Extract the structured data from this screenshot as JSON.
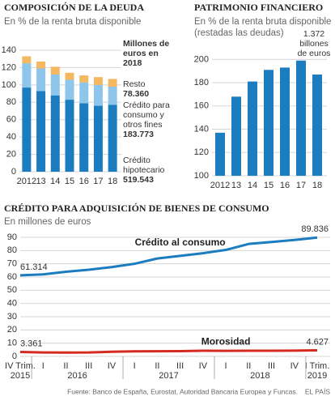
{
  "chart_data": [
    {
      "type": "bar",
      "stacked": true,
      "title": "COMPOSICIÓN DE LA DEUDA",
      "subtitle": "En % de la renta bruta disponible",
      "categories": [
        "2012",
        "13",
        "14",
        "15",
        "16",
        "17",
        "18"
      ],
      "ylim": [
        0,
        140
      ],
      "yticks": [
        0,
        20,
        40,
        60,
        80,
        100,
        120,
        140
      ],
      "grid": true,
      "annotation_title": "Millones de euros en 2018",
      "series": [
        {
          "name": "Crédito hipotecario",
          "color": "#1c7cc0",
          "values": [
            97,
            93,
            88,
            83,
            79,
            76,
            77
          ],
          "annotation": "519.543"
        },
        {
          "name": "Crédito para consumo y otros fines",
          "color": "#8ec5ea",
          "values": [
            28,
            26,
            24,
            23,
            24,
            24,
            21
          ],
          "annotation": "183.773"
        },
        {
          "name": "Resto",
          "color": "#f4b860",
          "values": [
            8,
            8,
            9,
            8,
            8,
            9,
            9
          ],
          "annotation": "78.360"
        }
      ]
    },
    {
      "type": "bar",
      "title": "PATRIMONIO FINANCIERO",
      "subtitle": "En % de la renta bruta disponible (restadas las deudas)",
      "categories": [
        "2012",
        "13",
        "14",
        "15",
        "16",
        "17",
        "18"
      ],
      "values": [
        137,
        168,
        181,
        191,
        193,
        199,
        187
      ],
      "color": "#1c7cc0",
      "ylim": [
        100,
        210
      ],
      "yticks": [
        100,
        120,
        140,
        160,
        180,
        200
      ],
      "grid": true,
      "annotation": "1.372 billones de euros"
    },
    {
      "type": "line",
      "title": "CRÉDITO PARA ADQUISICIÓN DE BIENES DE CONSUMO",
      "subtitle": "En millones de euros",
      "categories": [
        "IV Trim.",
        "I",
        "II",
        "III",
        "IV",
        "I",
        "II",
        "III",
        "IV",
        "I",
        "II",
        "III",
        "IV",
        "I Trim."
      ],
      "year_labels": [
        "2015",
        "2016",
        "2017",
        "2018",
        "2019"
      ],
      "ylim": [
        0,
        90
      ],
      "yticks": [
        0,
        10,
        20,
        30,
        40,
        50,
        60,
        70,
        80,
        90
      ],
      "grid": true,
      "series": [
        {
          "name": "Crédito al consumo",
          "color": "#1c7cc0",
          "values": [
            61.314,
            62,
            64,
            65.5,
            67.5,
            70,
            74,
            76,
            78,
            80.5,
            85,
            86.5,
            88,
            89.836
          ],
          "value_labels": [
            "61.314",
            null,
            null,
            null,
            null,
            null,
            null,
            null,
            null,
            null,
            null,
            null,
            null,
            "89.836"
          ]
        },
        {
          "name": "Morosidad",
          "color": "#d42a20",
          "values": [
            3.361,
            3.0,
            2.9,
            3.0,
            3.5,
            3.8,
            3.9,
            4.0,
            4.3,
            4.2,
            4.3,
            4.3,
            4.4,
            4.627
          ],
          "value_labels": [
            "3.361",
            null,
            null,
            null,
            null,
            null,
            null,
            null,
            null,
            null,
            null,
            null,
            null,
            "4.627"
          ]
        }
      ]
    }
  ],
  "footer": {
    "source": "Fuente: Banco de España, Eurostat, Autoridad Bancaria Europea y Funcas.",
    "brand": "EL PAÍS"
  }
}
